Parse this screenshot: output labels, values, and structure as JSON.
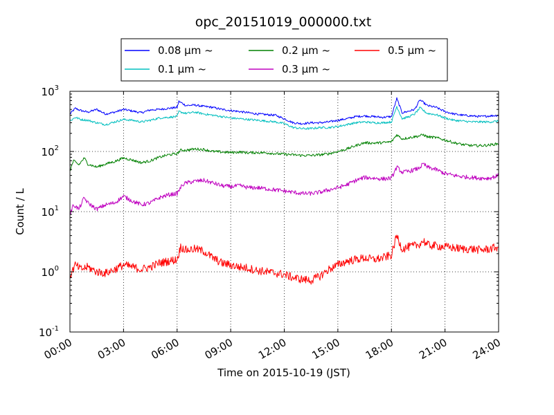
{
  "chart_data": {
    "type": "line",
    "title": "opc_20151019_000000.txt",
    "xlabel": "Time on 2015-10-19 (JST)",
    "ylabel": "Count / L",
    "x_unit": "hours",
    "xlim": [
      0,
      24
    ],
    "ylim": [
      0.1,
      1000
    ],
    "yscale": "log",
    "grid": true,
    "legend_position": "top",
    "x_tick_labels": [
      "00:00",
      "03:00",
      "06:00",
      "09:00",
      "12:00",
      "15:00",
      "18:00",
      "21:00",
      "24:00"
    ],
    "y_tick_labels": [
      {
        "base": "10",
        "exp": "-1"
      },
      {
        "base": "10",
        "exp": "0"
      },
      {
        "base": "10",
        "exp": "1"
      },
      {
        "base": "10",
        "exp": "2"
      },
      {
        "base": "10",
        "exp": "3"
      }
    ],
    "series": [
      {
        "name": "0.08 μm ~",
        "color": "#0000ff",
        "points": [
          [
            0,
            420
          ],
          [
            0.3,
            520
          ],
          [
            0.6,
            480
          ],
          [
            1,
            450
          ],
          [
            1.5,
            500
          ],
          [
            2,
            420
          ],
          [
            2.5,
            450
          ],
          [
            3,
            500
          ],
          [
            3.5,
            470
          ],
          [
            4,
            440
          ],
          [
            4.5,
            490
          ],
          [
            5,
            500
          ],
          [
            5.5,
            520
          ],
          [
            6,
            540
          ],
          [
            6.1,
            680
          ],
          [
            6.5,
            580
          ],
          [
            7,
            590
          ],
          [
            7.5,
            560
          ],
          [
            8,
            540
          ],
          [
            8.5,
            500
          ],
          [
            9,
            480
          ],
          [
            9.5,
            460
          ],
          [
            10,
            440
          ],
          [
            10.5,
            420
          ],
          [
            11,
            410
          ],
          [
            11.5,
            400
          ],
          [
            12,
            350
          ],
          [
            12.5,
            300
          ],
          [
            13,
            290
          ],
          [
            13.5,
            300
          ],
          [
            14,
            300
          ],
          [
            14.5,
            310
          ],
          [
            15,
            330
          ],
          [
            15.5,
            350
          ],
          [
            16,
            380
          ],
          [
            16.5,
            390
          ],
          [
            17,
            380
          ],
          [
            17.5,
            370
          ],
          [
            18,
            380
          ],
          [
            18.3,
            760
          ],
          [
            18.6,
            440
          ],
          [
            19,
            470
          ],
          [
            19.3,
            500
          ],
          [
            19.6,
            720
          ],
          [
            20,
            580
          ],
          [
            20.5,
            540
          ],
          [
            21,
            460
          ],
          [
            21.5,
            420
          ],
          [
            22,
            400
          ],
          [
            22.5,
            390
          ],
          [
            23,
            380
          ],
          [
            23.5,
            390
          ],
          [
            24,
            400
          ]
        ]
      },
      {
        "name": "0.1 μm ~",
        "color": "#00bfbf",
        "points": [
          [
            0,
            320
          ],
          [
            0.3,
            370
          ],
          [
            0.6,
            340
          ],
          [
            1,
            330
          ],
          [
            1.5,
            300
          ],
          [
            2,
            280
          ],
          [
            2.5,
            310
          ],
          [
            3,
            340
          ],
          [
            3.5,
            330
          ],
          [
            4,
            310
          ],
          [
            4.5,
            330
          ],
          [
            5,
            360
          ],
          [
            5.5,
            370
          ],
          [
            6,
            380
          ],
          [
            6.1,
            460
          ],
          [
            6.5,
            430
          ],
          [
            7,
            450
          ],
          [
            7.5,
            420
          ],
          [
            8,
            400
          ],
          [
            8.5,
            380
          ],
          [
            9,
            360
          ],
          [
            9.5,
            350
          ],
          [
            10,
            340
          ],
          [
            10.5,
            330
          ],
          [
            11,
            320
          ],
          [
            11.5,
            310
          ],
          [
            12,
            290
          ],
          [
            12.5,
            250
          ],
          [
            13,
            240
          ],
          [
            13.5,
            240
          ],
          [
            14,
            250
          ],
          [
            14.5,
            250
          ],
          [
            15,
            260
          ],
          [
            15.5,
            280
          ],
          [
            16,
            300
          ],
          [
            16.5,
            310
          ],
          [
            17,
            300
          ],
          [
            17.5,
            300
          ],
          [
            18,
            310
          ],
          [
            18.3,
            560
          ],
          [
            18.6,
            350
          ],
          [
            19,
            380
          ],
          [
            19.3,
            420
          ],
          [
            19.6,
            530
          ],
          [
            20,
            430
          ],
          [
            20.5,
            410
          ],
          [
            21,
            360
          ],
          [
            21.5,
            330
          ],
          [
            22,
            320
          ],
          [
            22.5,
            310
          ],
          [
            23,
            310
          ],
          [
            23.5,
            310
          ],
          [
            24,
            320
          ]
        ]
      },
      {
        "name": "0.2 μm ~",
        "color": "#008000",
        "points": [
          [
            0,
            48
          ],
          [
            0.2,
            70
          ],
          [
            0.5,
            60
          ],
          [
            0.8,
            78
          ],
          [
            1,
            62
          ],
          [
            1.5,
            55
          ],
          [
            2,
            62
          ],
          [
            2.5,
            68
          ],
          [
            3,
            78
          ],
          [
            3.5,
            72
          ],
          [
            4,
            65
          ],
          [
            4.5,
            70
          ],
          [
            5,
            80
          ],
          [
            5.5,
            88
          ],
          [
            6,
            92
          ],
          [
            6.2,
            105
          ],
          [
            6.5,
            105
          ],
          [
            7,
            110
          ],
          [
            7.5,
            108
          ],
          [
            8,
            100
          ],
          [
            8.5,
            98
          ],
          [
            9,
            96
          ],
          [
            9.5,
            98
          ],
          [
            10,
            95
          ],
          [
            10.5,
            96
          ],
          [
            11,
            95
          ],
          [
            11.5,
            92
          ],
          [
            12,
            90
          ],
          [
            12.5,
            88
          ],
          [
            13,
            86
          ],
          [
            13.5,
            86
          ],
          [
            14,
            88
          ],
          [
            14.5,
            92
          ],
          [
            15,
            100
          ],
          [
            15.5,
            110
          ],
          [
            16,
            125
          ],
          [
            16.5,
            140
          ],
          [
            17,
            138
          ],
          [
            17.5,
            140
          ],
          [
            18,
            145
          ],
          [
            18.3,
            190
          ],
          [
            18.6,
            162
          ],
          [
            19,
            170
          ],
          [
            19.5,
            180
          ],
          [
            19.8,
            190
          ],
          [
            20,
            175
          ],
          [
            20.5,
            170
          ],
          [
            21,
            155
          ],
          [
            21.5,
            140
          ],
          [
            22,
            130
          ],
          [
            22.5,
            125
          ],
          [
            23,
            125
          ],
          [
            23.5,
            128
          ],
          [
            24,
            135
          ]
        ]
      },
      {
        "name": "0.3 μm ~",
        "color": "#bf00bf",
        "points": [
          [
            0,
            9
          ],
          [
            0.2,
            13
          ],
          [
            0.5,
            11
          ],
          [
            0.8,
            17
          ],
          [
            1,
            14
          ],
          [
            1.5,
            11
          ],
          [
            2,
            13
          ],
          [
            2.5,
            14
          ],
          [
            3,
            18
          ],
          [
            3.5,
            15
          ],
          [
            4,
            13
          ],
          [
            4.5,
            14
          ],
          [
            5,
            17
          ],
          [
            5.5,
            19
          ],
          [
            6,
            20
          ],
          [
            6.3,
            28
          ],
          [
            6.5,
            30
          ],
          [
            7,
            32
          ],
          [
            7.5,
            33
          ],
          [
            8,
            30
          ],
          [
            8.5,
            27
          ],
          [
            9,
            26
          ],
          [
            9.5,
            27
          ],
          [
            10,
            25
          ],
          [
            10.5,
            25
          ],
          [
            11,
            24
          ],
          [
            11.5,
            23
          ],
          [
            12,
            22
          ],
          [
            12.5,
            21
          ],
          [
            13,
            20
          ],
          [
            13.5,
            20
          ],
          [
            14,
            21
          ],
          [
            14.5,
            23
          ],
          [
            15,
            25
          ],
          [
            15.5,
            28
          ],
          [
            16,
            33
          ],
          [
            16.5,
            37
          ],
          [
            17,
            36
          ],
          [
            17.5,
            35
          ],
          [
            18,
            36
          ],
          [
            18.3,
            55
          ],
          [
            18.6,
            45
          ],
          [
            19,
            47
          ],
          [
            19.5,
            52
          ],
          [
            19.8,
            62
          ],
          [
            20,
            55
          ],
          [
            20.5,
            50
          ],
          [
            21,
            43
          ],
          [
            21.5,
            40
          ],
          [
            22,
            38
          ],
          [
            22.5,
            37
          ],
          [
            23,
            36
          ],
          [
            23.5,
            36
          ],
          [
            24,
            40
          ]
        ]
      },
      {
        "name": "0.5 μm ~",
        "color": "#ff0000",
        "points": [
          [
            0,
            0.85
          ],
          [
            0.3,
            1.3
          ],
          [
            0.6,
            1.1
          ],
          [
            1,
            1.2
          ],
          [
            1.5,
            1.0
          ],
          [
            2,
            0.95
          ],
          [
            2.5,
            1.1
          ],
          [
            3,
            1.3
          ],
          [
            3.5,
            1.2
          ],
          [
            4,
            1.1
          ],
          [
            4.5,
            1.2
          ],
          [
            5,
            1.4
          ],
          [
            5.5,
            1.5
          ],
          [
            6,
            1.6
          ],
          [
            6.2,
            2.6
          ],
          [
            6.5,
            2.3
          ],
          [
            7,
            2.4
          ],
          [
            7.5,
            2.2
          ],
          [
            8,
            1.7
          ],
          [
            8.5,
            1.4
          ],
          [
            9,
            1.3
          ],
          [
            9.5,
            1.2
          ],
          [
            10,
            1.15
          ],
          [
            10.5,
            1.05
          ],
          [
            11,
            1.0
          ],
          [
            11.5,
            0.95
          ],
          [
            12,
            0.9
          ],
          [
            12.5,
            0.8
          ],
          [
            13,
            0.75
          ],
          [
            13.5,
            0.72
          ],
          [
            14,
            0.85
          ],
          [
            14.5,
            1.1
          ],
          [
            15,
            1.3
          ],
          [
            15.5,
            1.5
          ],
          [
            16,
            1.6
          ],
          [
            16.5,
            1.7
          ],
          [
            17,
            1.6
          ],
          [
            17.5,
            1.7
          ],
          [
            18,
            1.9
          ],
          [
            18.3,
            4.0
          ],
          [
            18.6,
            2.4
          ],
          [
            19,
            2.6
          ],
          [
            19.5,
            2.8
          ],
          [
            19.8,
            3.3
          ],
          [
            20,
            2.8
          ],
          [
            20.5,
            2.7
          ],
          [
            21,
            2.6
          ],
          [
            21.5,
            2.5
          ],
          [
            22,
            2.4
          ],
          [
            22.5,
            2.4
          ],
          [
            23,
            2.3
          ],
          [
            23.5,
            2.4
          ],
          [
            24,
            2.6
          ]
        ]
      }
    ]
  }
}
